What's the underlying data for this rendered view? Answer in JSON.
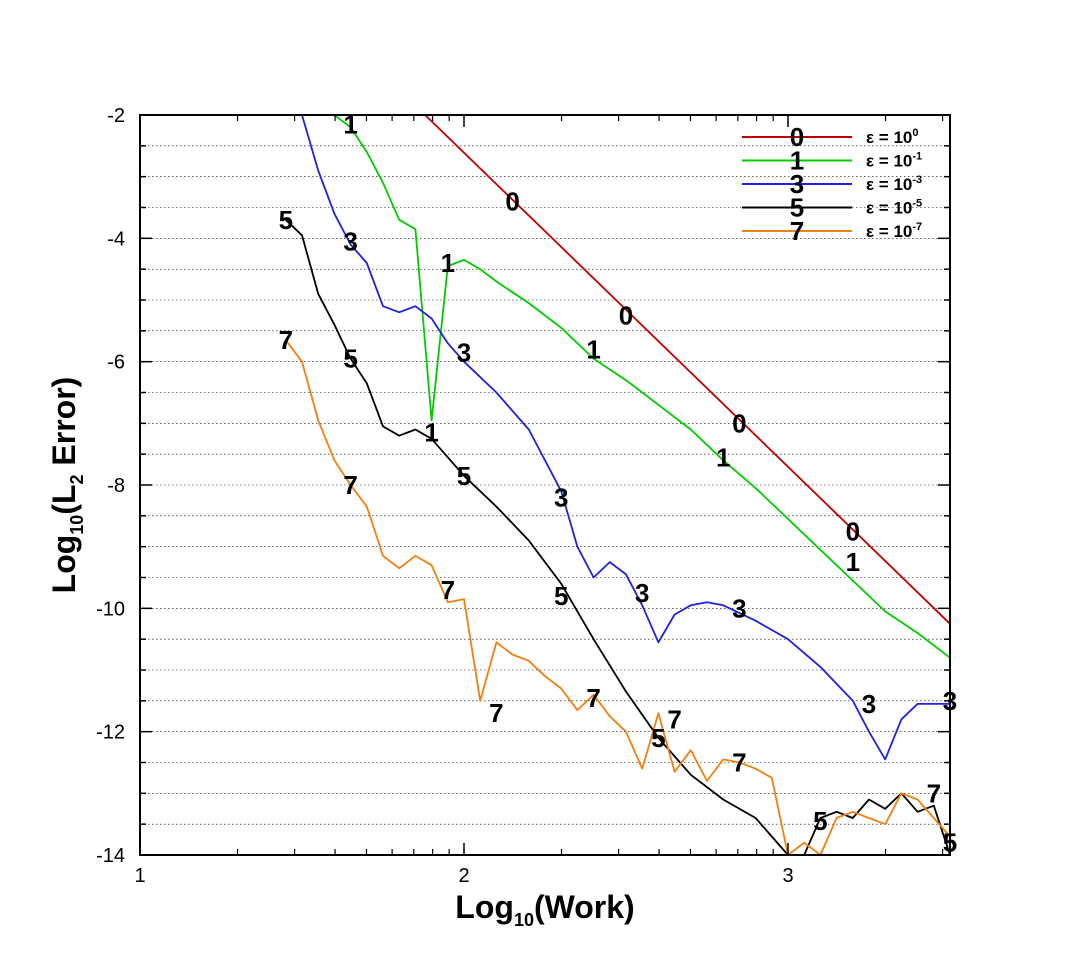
{
  "chart_data": {
    "type": "line",
    "xlabel_main": "Log",
    "xlabel_sub": "10",
    "xlabel_rest": "(Work)",
    "ylabel_main": "Log",
    "ylabel_sub": "10",
    "ylabel_mid": "(L",
    "ylabel_sub2": "2",
    "ylabel_rest": " Error)",
    "xlim": [
      1,
      3.5
    ],
    "ylim": [
      -14,
      -2
    ],
    "xticks": [
      1,
      2,
      3
    ],
    "yticks": [
      -14,
      -12,
      -10,
      -8,
      -6,
      -4,
      -2
    ],
    "grid": "horizontal dotted",
    "legend_placement": "top-right",
    "series": [
      {
        "name": "0",
        "legend_text": "ε = 10",
        "legend_exp": "0",
        "color": "#c00000",
        "x": [
          1.88,
          3.5
        ],
        "y": [
          -2.0,
          -10.25
        ],
        "labels": [
          [
            2.15,
            -3.4
          ],
          [
            2.5,
            -5.25
          ],
          [
            2.85,
            -7.0
          ],
          [
            3.2,
            -8.75
          ]
        ]
      },
      {
        "name": "1",
        "legend_text": "ε = 10",
        "legend_exp": "-1",
        "color": "#00cc00",
        "x": [
          1.6,
          1.65,
          1.7,
          1.75,
          1.8,
          1.85,
          1.9,
          1.95,
          2.0,
          2.05,
          2.1,
          2.2,
          2.3,
          2.4,
          2.5,
          2.6,
          2.7,
          2.8,
          2.9,
          3.0,
          3.1,
          3.2,
          3.3,
          3.4,
          3.5
        ],
        "y": [
          -2.0,
          -2.2,
          -2.6,
          -3.1,
          -3.7,
          -3.85,
          -6.95,
          -4.45,
          -4.35,
          -4.5,
          -4.7,
          -5.05,
          -5.45,
          -5.95,
          -6.3,
          -6.7,
          -7.1,
          -7.6,
          -8.05,
          -8.55,
          -9.05,
          -9.55,
          -10.05,
          -10.4,
          -10.8
        ],
        "labels": [
          [
            1.65,
            -2.15
          ],
          [
            1.95,
            -4.4
          ],
          [
            1.9,
            -7.15
          ],
          [
            2.4,
            -5.8
          ],
          [
            2.8,
            -7.55
          ],
          [
            3.2,
            -9.25
          ]
        ]
      },
      {
        "name": "3",
        "legend_text": "ε = 10",
        "legend_exp": "-3",
        "color": "#2020e0",
        "x": [
          1.5,
          1.55,
          1.6,
          1.65,
          1.7,
          1.75,
          1.8,
          1.85,
          1.9,
          1.95,
          2.0,
          2.1,
          2.2,
          2.3,
          2.35,
          2.4,
          2.45,
          2.5,
          2.55,
          2.6,
          2.65,
          2.7,
          2.75,
          2.8,
          2.9,
          3.0,
          3.1,
          3.2,
          3.25,
          3.3,
          3.35,
          3.4,
          3.5
        ],
        "y": [
          -2.0,
          -2.9,
          -3.6,
          -4.1,
          -4.4,
          -5.1,
          -5.2,
          -5.1,
          -5.3,
          -5.7,
          -6.0,
          -6.5,
          -7.1,
          -8.1,
          -9.0,
          -9.5,
          -9.25,
          -9.45,
          -9.95,
          -10.55,
          -10.1,
          -9.95,
          -9.9,
          -9.95,
          -10.2,
          -10.5,
          -10.95,
          -11.5,
          -12.0,
          -12.45,
          -11.8,
          -11.55,
          -11.55
        ],
        "labels": [
          [
            1.65,
            -4.05
          ],
          [
            2.0,
            -5.85
          ],
          [
            2.3,
            -8.2
          ],
          [
            2.55,
            -9.75
          ],
          [
            2.85,
            -10.0
          ],
          [
            3.25,
            -11.55
          ],
          [
            3.5,
            -11.5
          ]
        ]
      },
      {
        "name": "5",
        "legend_text": "ε = 10",
        "legend_exp": "-5",
        "color": "#000000",
        "x": [
          1.45,
          1.5,
          1.55,
          1.6,
          1.65,
          1.7,
          1.75,
          1.8,
          1.85,
          1.9,
          1.95,
          2.0,
          2.1,
          2.2,
          2.3,
          2.4,
          2.5,
          2.6,
          2.7,
          2.8,
          2.9,
          2.95,
          3.0,
          3.05,
          3.1,
          3.15,
          3.2,
          3.25,
          3.3,
          3.35,
          3.4,
          3.45,
          3.5
        ],
        "y": [
          -3.7,
          -3.95,
          -4.9,
          -5.4,
          -5.95,
          -6.35,
          -7.05,
          -7.2,
          -7.1,
          -7.25,
          -7.55,
          -7.85,
          -8.35,
          -8.9,
          -9.6,
          -10.5,
          -11.35,
          -12.1,
          -12.7,
          -13.1,
          -13.4,
          -13.7,
          -14.0,
          -14.0,
          -13.4,
          -13.3,
          -13.4,
          -13.1,
          -13.25,
          -13.0,
          -13.3,
          -13.2,
          -14.0
        ],
        "labels": [
          [
            1.45,
            -3.7
          ],
          [
            1.65,
            -5.95
          ],
          [
            2.0,
            -7.85
          ],
          [
            2.3,
            -9.8
          ],
          [
            2.6,
            -12.1
          ],
          [
            3.1,
            -13.45
          ],
          [
            3.5,
            -13.8
          ]
        ]
      },
      {
        "name": "7",
        "legend_text": "ε = 10",
        "legend_exp": "-7",
        "color": "#f08010",
        "x": [
          1.45,
          1.5,
          1.55,
          1.6,
          1.65,
          1.7,
          1.75,
          1.8,
          1.85,
          1.9,
          1.95,
          2.0,
          2.05,
          2.1,
          2.15,
          2.2,
          2.25,
          2.3,
          2.35,
          2.4,
          2.45,
          2.5,
          2.55,
          2.6,
          2.65,
          2.7,
          2.75,
          2.8,
          2.85,
          2.9,
          2.95,
          3.0,
          3.05,
          3.1,
          3.15,
          3.2,
          3.25,
          3.3,
          3.35,
          3.4,
          3.45,
          3.5
        ],
        "y": [
          -5.65,
          -6.0,
          -6.95,
          -7.6,
          -8.0,
          -8.35,
          -9.15,
          -9.35,
          -9.15,
          -9.3,
          -9.9,
          -9.85,
          -11.5,
          -10.55,
          -10.75,
          -10.85,
          -11.1,
          -11.3,
          -11.65,
          -11.4,
          -11.75,
          -12.0,
          -12.6,
          -11.7,
          -12.65,
          -12.3,
          -12.8,
          -12.45,
          -12.5,
          -12.6,
          -12.75,
          -14.0,
          -13.8,
          -14.0,
          -13.4,
          -13.3,
          -13.4,
          -13.5,
          -13.0,
          -13.1,
          -13.4,
          -13.7
        ],
        "labels": [
          [
            1.45,
            -5.65
          ],
          [
            1.65,
            -8.0
          ],
          [
            1.95,
            -9.7
          ],
          [
            2.1,
            -11.7
          ],
          [
            2.4,
            -11.45
          ],
          [
            2.65,
            -11.8
          ],
          [
            2.85,
            -12.5
          ],
          [
            3.45,
            -13.0
          ]
        ]
      }
    ]
  }
}
